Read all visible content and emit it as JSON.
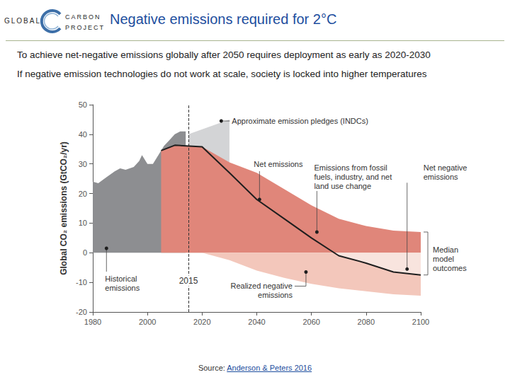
{
  "page": {
    "logo": [
      "GLOBAL",
      "CARBON",
      "PROJECT"
    ],
    "title": "Negative emissions required for 2°C",
    "subtitles": [
      "To achieve net-negative emissions globally after 2050 requires deployment as early as 2020-2030",
      "If negative emission technologies do not work at scale, society is locked into higher temperatures"
    ],
    "source": {
      "label": "Source:",
      "link": "Anderson & Peters 2016"
    }
  },
  "chart_data": {
    "type": "area",
    "ylabel": "Global CO₂ emissions (GtCO₂/yr)",
    "xlim": [
      1980,
      2100
    ],
    "xticks": [
      1980,
      2000,
      2020,
      2040,
      2060,
      2080,
      2100
    ],
    "ylim": [
      -20,
      50
    ],
    "yticks": [
      -20,
      -10,
      0,
      10,
      20,
      30,
      40,
      50
    ],
    "grid": false,
    "reference_line": {
      "x": 2015,
      "label": "2015"
    },
    "bracket_label": "Median\nmodel\noutcomes",
    "series": [
      {
        "name": "Historical\nemissions",
        "type": "area",
        "color": "#8d8e91",
        "x": [
          1980,
          1982,
          1985,
          1988,
          1990,
          1992,
          1995,
          1997,
          1998,
          2000,
          2002,
          2004,
          2006,
          2008,
          2010,
          2012,
          2014
        ],
        "values": [
          24,
          23.5,
          25.5,
          27.5,
          28.5,
          28,
          29,
          31,
          33,
          30,
          30,
          33,
          36,
          38,
          40,
          41,
          41
        ]
      },
      {
        "name": "Approximate emission pledges (INDCs)",
        "type": "area",
        "color": "#d3d4d6",
        "x": [
          2015,
          2030
        ],
        "values": [
          40,
          45
        ]
      },
      {
        "name": "Emissions from fossil\nfuels, industry, and net\nland use change",
        "type": "area",
        "color": "#e0867a",
        "x": [
          2005,
          2010,
          2020,
          2030,
          2040,
          2050,
          2060,
          2070,
          2080,
          2090,
          2100
        ],
        "values": [
          34.5,
          36.3,
          35.8,
          30.5,
          27,
          21.5,
          16,
          11.5,
          9,
          7.5,
          7
        ]
      },
      {
        "name": "Realized negative\nemissions",
        "type": "area",
        "color": "#f3c7bb",
        "x": [
          2020,
          2030,
          2040,
          2050,
          2060,
          2070,
          2080,
          2090,
          2100
        ],
        "values": [
          0,
          -2.5,
          -6,
          -8.5,
          -10.5,
          -12,
          -13,
          -14,
          -14.5
        ]
      },
      {
        "name": "Net negative\nemissions",
        "type": "area",
        "color": "#f8e4de",
        "x": [
          2068,
          2070,
          2080,
          2090,
          2100
        ],
        "values": [
          0,
          -1,
          -3.5,
          -6.5,
          -7.5
        ]
      },
      {
        "name": "Net emissions",
        "type": "line",
        "color": "#1e1e1e",
        "x": [
          2005,
          2010,
          2020,
          2030,
          2040,
          2050,
          2060,
          2070,
          2080,
          2090,
          2100
        ],
        "values": [
          34.5,
          36.3,
          35.8,
          27,
          18,
          11.5,
          5,
          -1,
          -3.5,
          -6.5,
          -7.5
        ]
      }
    ]
  }
}
